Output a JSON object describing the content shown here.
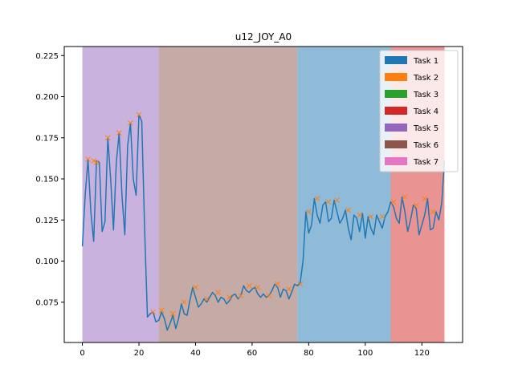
{
  "chart_data": {
    "type": "line",
    "title": "u12_JOY_A0",
    "xlabel": "",
    "ylabel": "",
    "xlim": [
      -6.4,
      134.4
    ],
    "ylim": [
      0.0505,
      0.2305
    ],
    "xticks": [
      0,
      20,
      40,
      60,
      80,
      100,
      120
    ],
    "yticks": [
      0.075,
      0.1,
      0.125,
      0.15,
      0.175,
      0.2,
      0.225
    ],
    "ytick_labels": [
      "0.075",
      "0.100",
      "0.125",
      "0.150",
      "0.175",
      "0.200",
      "0.225"
    ],
    "grid": false,
    "legend_position": "top-right",
    "legend": [
      {
        "label": "Task 1",
        "color": "#1f77b4"
      },
      {
        "label": "Task 2",
        "color": "#ff7f0e"
      },
      {
        "label": "Task 3",
        "color": "#2ca02c"
      },
      {
        "label": "Task 4",
        "color": "#d62728"
      },
      {
        "label": "Task 5",
        "color": "#9467bd"
      },
      {
        "label": "Task 6",
        "color": "#8c564b"
      },
      {
        "label": "Task 7",
        "color": "#e377c2"
      }
    ],
    "regions": [
      {
        "task": "Task 5",
        "x_start": 0,
        "x_end": 27,
        "color": "#9467bd"
      },
      {
        "task": "Task 6",
        "x_start": 27,
        "x_end": 76,
        "color": "#8c564b"
      },
      {
        "task": "Task 1",
        "x_start": 76,
        "x_end": 109,
        "color": "#1f77b4"
      },
      {
        "task": "Task 4",
        "x_start": 109,
        "x_end": 128,
        "color": "#d62728"
      }
    ],
    "series": [
      {
        "color": "#1f77b4",
        "x": [
          0,
          1,
          2,
          3,
          4,
          5,
          6,
          7,
          8,
          9,
          10,
          11,
          12,
          13,
          14,
          15,
          16,
          17,
          18,
          19,
          20,
          21,
          22,
          23,
          24,
          25,
          26,
          27,
          28,
          29,
          30,
          31,
          32,
          33,
          34,
          35,
          36,
          37,
          38,
          39,
          40,
          41,
          42,
          43,
          44,
          45,
          46,
          47,
          48,
          49,
          50,
          51,
          52,
          53,
          54,
          55,
          56,
          57,
          58,
          59,
          60,
          61,
          62,
          63,
          64,
          65,
          66,
          67,
          68,
          69,
          70,
          71,
          72,
          73,
          74,
          75,
          76,
          77,
          78,
          79,
          80,
          81,
          82,
          83,
          84,
          85,
          86,
          87,
          88,
          89,
          90,
          91,
          92,
          93,
          94,
          95,
          96,
          97,
          98,
          99,
          100,
          101,
          102,
          103,
          104,
          105,
          106,
          107,
          108,
          109,
          110,
          111,
          112,
          113,
          114,
          115,
          116,
          117,
          118,
          119,
          120,
          121,
          122,
          123,
          124,
          125,
          126,
          127,
          128
        ],
        "y": [
          0.109,
          0.14,
          0.162,
          0.13,
          0.112,
          0.161,
          0.16,
          0.118,
          0.124,
          0.175,
          0.15,
          0.119,
          0.16,
          0.178,
          0.14,
          0.116,
          0.17,
          0.184,
          0.15,
          0.14,
          0.189,
          0.185,
          0.12,
          0.066,
          0.068,
          0.069,
          0.063,
          0.064,
          0.069,
          0.065,
          0.058,
          0.062,
          0.067,
          0.059,
          0.065,
          0.074,
          0.068,
          0.067,
          0.076,
          0.084,
          0.078,
          0.072,
          0.074,
          0.077,
          0.075,
          0.078,
          0.081,
          0.079,
          0.075,
          0.078,
          0.077,
          0.074,
          0.076,
          0.079,
          0.08,
          0.077,
          0.079,
          0.085,
          0.082,
          0.081,
          0.083,
          0.084,
          0.08,
          0.078,
          0.08,
          0.078,
          0.079,
          0.082,
          0.086,
          0.084,
          0.078,
          0.083,
          0.082,
          0.077,
          0.081,
          0.086,
          0.085,
          0.087,
          0.1,
          0.13,
          0.117,
          0.122,
          0.138,
          0.128,
          0.123,
          0.134,
          0.136,
          0.124,
          0.126,
          0.137,
          0.13,
          0.123,
          0.126,
          0.131,
          0.12,
          0.113,
          0.128,
          0.126,
          0.118,
          0.129,
          0.114,
          0.127,
          0.12,
          0.116,
          0.128,
          0.124,
          0.12,
          0.127,
          0.13,
          0.136,
          0.133,
          0.126,
          0.123,
          0.139,
          0.13,
          0.118,
          0.125,
          0.134,
          0.132,
          0.116,
          0.122,
          0.128,
          0.138,
          0.119,
          0.12,
          0.13,
          0.125,
          0.135,
          0.161
        ]
      }
    ],
    "markers": {
      "symbol": "x",
      "color": "#ff7f0e",
      "x": [
        2,
        4,
        5,
        9,
        13,
        17,
        20,
        25,
        28,
        32,
        36,
        40,
        44,
        48,
        52,
        56,
        59,
        62,
        66,
        69,
        73,
        77,
        80,
        83,
        87,
        90,
        94,
        98,
        102,
        106,
        110,
        114,
        118,
        121,
        124
      ],
      "y": [
        0.162,
        0.161,
        0.16,
        0.175,
        0.178,
        0.184,
        0.189,
        0.069,
        0.07,
        0.068,
        0.075,
        0.084,
        0.077,
        0.081,
        0.078,
        0.079,
        0.085,
        0.084,
        0.079,
        0.086,
        0.083,
        0.086,
        0.13,
        0.138,
        0.136,
        0.137,
        0.131,
        0.128,
        0.127,
        0.127,
        0.136,
        0.139,
        0.134,
        0.138,
        0.13
      ]
    }
  }
}
